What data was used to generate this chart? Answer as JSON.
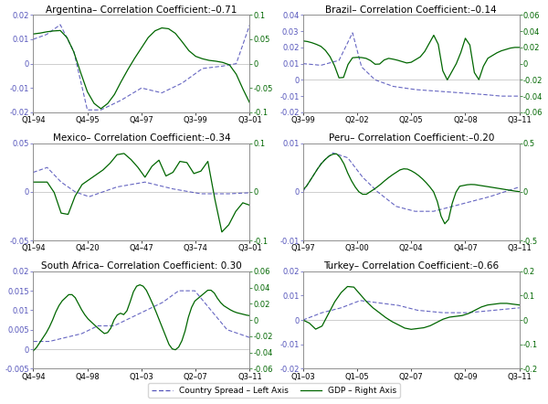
{
  "panels": [
    {
      "title": "Argentina– Correlation Coefficient:–0.71",
      "xlabels": [
        "Q1–94",
        "Q4–95",
        "Q4–97",
        "Q3–99",
        "Q3–01"
      ],
      "left_ylim": [
        -0.02,
        0.02
      ],
      "right_ylim": [
        -0.1,
        0.1
      ],
      "left_yticks": [
        -0.02,
        -0.01,
        0,
        0.01,
        0.02
      ],
      "right_yticks": [
        -0.1,
        -0.05,
        0,
        0.05,
        0.1
      ]
    },
    {
      "title": "Brazil– Correlation Coefficient:–0.14",
      "xlabels": [
        "Q3–99",
        "Q2–02",
        "Q2–05",
        "Q2–08",
        "Q3–11"
      ],
      "left_ylim": [
        -0.02,
        0.04
      ],
      "right_ylim": [
        -0.06,
        0.06
      ],
      "left_yticks": [
        -0.02,
        -0.01,
        0,
        0.01,
        0.02,
        0.03,
        0.04
      ],
      "right_yticks": [
        -0.06,
        -0.04,
        -0.02,
        0,
        0.02,
        0.04,
        0.06
      ]
    },
    {
      "title": "Mexico– Correlation Coefficient:–0.34",
      "xlabels": [
        "Q1–94",
        "Q4–20",
        "Q4–47",
        "Q3–74",
        "Q3–01"
      ],
      "left_ylim": [
        -0.05,
        0.05
      ],
      "right_ylim": [
        -0.1,
        0.1
      ],
      "left_yticks": [
        -0.05,
        0,
        0.05
      ],
      "right_yticks": [
        -0.1,
        0,
        0.1
      ]
    },
    {
      "title": "Peru– Correlation Coefficient:–0.20",
      "xlabels": [
        "Q1–97",
        "Q3–00",
        "Q2–04",
        "Q4–07",
        "Q3–11"
      ],
      "left_ylim": [
        -0.01,
        0.01
      ],
      "right_ylim": [
        -0.5,
        0.5
      ],
      "left_yticks": [
        -0.01,
        0,
        0.01
      ],
      "right_yticks": [
        -0.5,
        0,
        0.5
      ]
    },
    {
      "title": "South Africa– Correlation Coefficient: 0.30",
      "xlabels": [
        "Q4–94",
        "Q4–98",
        "Q1–03",
        "Q2–07",
        "Q3–11"
      ],
      "left_ylim": [
        -0.005,
        0.02
      ],
      "right_ylim": [
        -0.06,
        0.06
      ],
      "left_yticks": [
        -0.005,
        0,
        0.005,
        0.01,
        0.015,
        0.02
      ],
      "right_yticks": [
        -0.06,
        -0.04,
        -0.02,
        0,
        0.02,
        0.04,
        0.06
      ]
    },
    {
      "title": "Turkey– Correlation Coefficient:–0.66",
      "xlabels": [
        "Q1–03",
        "Q1–05",
        "Q2–07",
        "Q2–09",
        "Q3–11"
      ],
      "left_ylim": [
        -0.02,
        0.02
      ],
      "right_ylim": [
        -0.2,
        0.2
      ],
      "left_yticks": [
        -0.02,
        -0.01,
        0,
        0.01,
        0.02
      ],
      "right_yticks": [
        -0.2,
        -0.1,
        0,
        0.1,
        0.2
      ]
    }
  ],
  "left_color": "#5555bb",
  "right_color": "#006600",
  "legend_left_label": "Country Spread – Left Axis",
  "legend_right_label": "GDP – Right Axis",
  "title_fontsize": 7.5,
  "tick_fontsize": 6.0,
  "background_color": "white"
}
